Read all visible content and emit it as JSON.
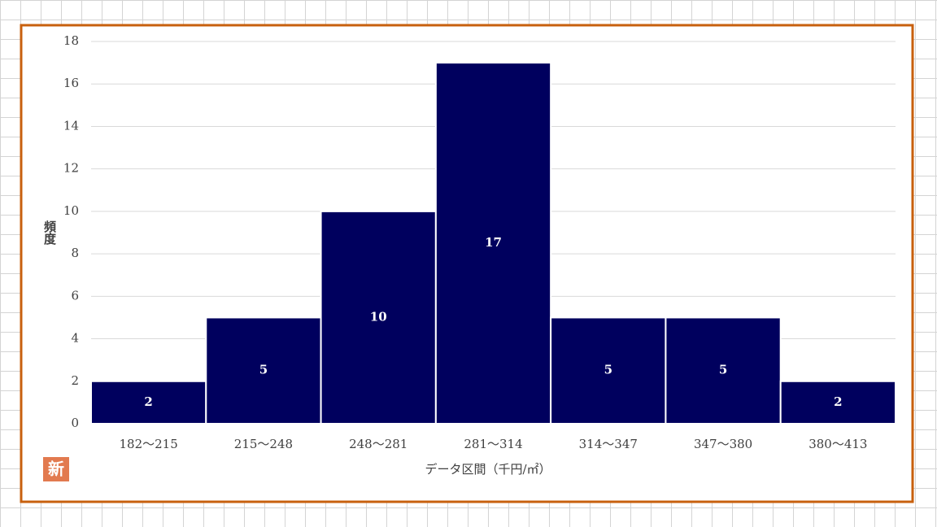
{
  "chart_data": {
    "type": "bar",
    "title": null,
    "x_label": "データ区間（千円/㎡）",
    "y_label": "頻度",
    "badge": "新",
    "categories": [
      "182～215",
      "215～248",
      "248～281",
      "281～314",
      "314～347",
      "347～380",
      "380～413"
    ],
    "values": [
      2,
      5,
      10,
      17,
      5,
      5,
      2
    ],
    "color": "#00005e",
    "ylim": [
      0,
      18
    ],
    "yticks": [
      0,
      2,
      4,
      6,
      8,
      10,
      12,
      14,
      16,
      18
    ],
    "grid": true
  }
}
